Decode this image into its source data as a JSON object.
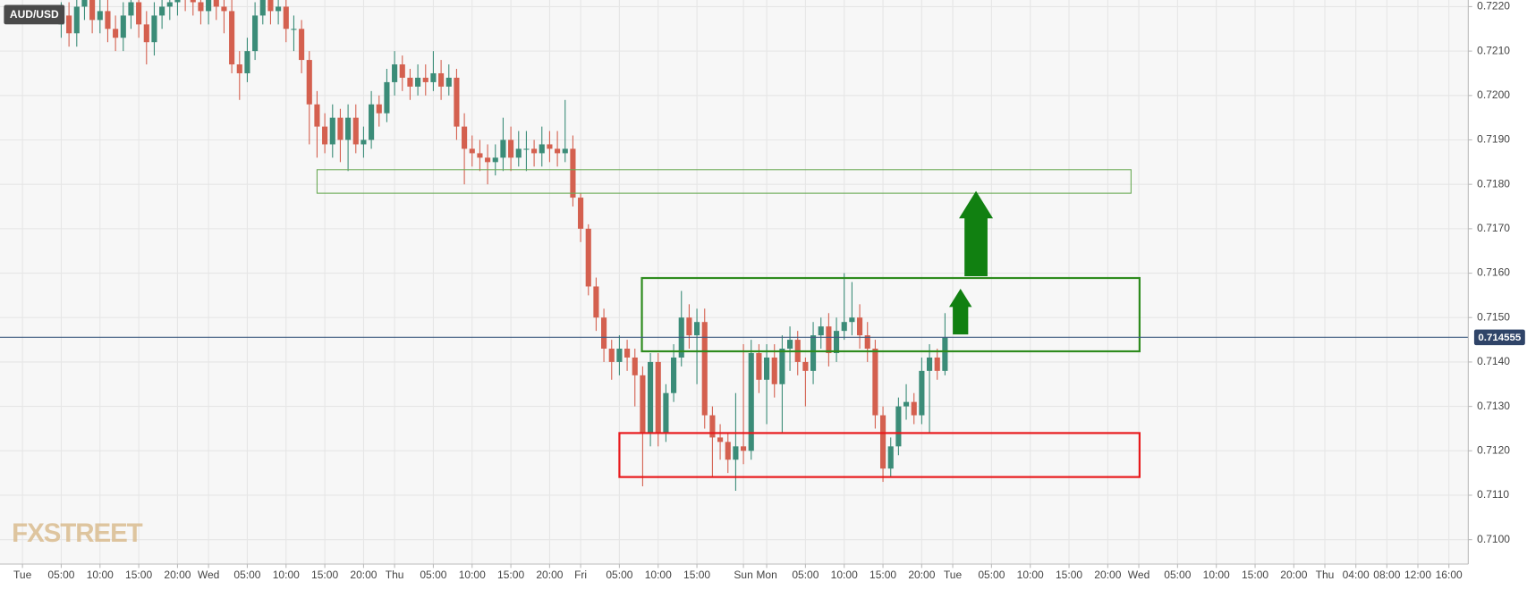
{
  "chart_data": {
    "type": "candlestick",
    "title": "AUD/USD",
    "watermark": "FXSTREET",
    "up_color": "#3b8c78",
    "down_color": "#d4604f",
    "grid": true,
    "xlim": [
      -2.9,
      186.5
    ],
    "ylim": [
      0.70945,
      0.72215
    ],
    "xticks": [
      {
        "value": 0,
        "label": "Tue"
      },
      {
        "value": 5,
        "label": "05:00"
      },
      {
        "value": 10,
        "label": "10:00"
      },
      {
        "value": 15,
        "label": "15:00"
      },
      {
        "value": 20,
        "label": "20:00"
      },
      {
        "value": 24,
        "label": "Wed"
      },
      {
        "value": 29,
        "label": "05:00"
      },
      {
        "value": 34,
        "label": "10:00"
      },
      {
        "value": 39,
        "label": "15:00"
      },
      {
        "value": 44,
        "label": "20:00"
      },
      {
        "value": 48,
        "label": "Thu"
      },
      {
        "value": 53,
        "label": "05:00"
      },
      {
        "value": 58,
        "label": "10:00"
      },
      {
        "value": 63,
        "label": "15:00"
      },
      {
        "value": 68,
        "label": "20:00"
      },
      {
        "value": 72,
        "label": "Fri"
      },
      {
        "value": 77,
        "label": "05:00"
      },
      {
        "value": 82,
        "label": "10:00"
      },
      {
        "value": 87,
        "label": "15:00"
      },
      {
        "value": 93,
        "label": "Sun"
      },
      {
        "value": 96,
        "label": "Mon"
      },
      {
        "value": 101,
        "label": "05:00"
      },
      {
        "value": 106,
        "label": "10:00"
      },
      {
        "value": 111,
        "label": "15:00"
      },
      {
        "value": 116,
        "label": "20:00"
      },
      {
        "value": 120,
        "label": "Tue"
      },
      {
        "value": 125,
        "label": "05:00"
      },
      {
        "value": 130,
        "label": "10:00"
      },
      {
        "value": 135,
        "label": "15:00"
      },
      {
        "value": 140,
        "label": "20:00"
      },
      {
        "value": 144,
        "label": "Wed"
      },
      {
        "value": 149,
        "label": "05:00"
      },
      {
        "value": 154,
        "label": "10:00"
      },
      {
        "value": 159,
        "label": "15:00"
      },
      {
        "value": 164,
        "label": "20:00"
      },
      {
        "value": 168,
        "label": "Thu"
      },
      {
        "value": 172,
        "label": "04:00"
      },
      {
        "value": 176,
        "label": "08:00"
      },
      {
        "value": 180,
        "label": "12:00"
      },
      {
        "value": 184,
        "label": "16:00"
      }
    ],
    "yticks": [
      {
        "value": 0.71,
        "label": "0.7100"
      },
      {
        "value": 0.711,
        "label": "0.7110"
      },
      {
        "value": 0.712,
        "label": "0.7120"
      },
      {
        "value": 0.713,
        "label": "0.7130"
      },
      {
        "value": 0.714,
        "label": "0.7140"
      },
      {
        "value": 0.715,
        "label": "0.7150"
      },
      {
        "value": 0.716,
        "label": "0.7160"
      },
      {
        "value": 0.717,
        "label": "0.7170"
      },
      {
        "value": 0.718,
        "label": "0.7180"
      },
      {
        "value": 0.719,
        "label": "0.7190"
      },
      {
        "value": 0.72,
        "label": "0.7200"
      },
      {
        "value": 0.721,
        "label": "0.7210"
      },
      {
        "value": 0.722,
        "label": "0.7220"
      }
    ],
    "last_price": 0.714555,
    "x": [
      5,
      6,
      7,
      8,
      9,
      10,
      11,
      12,
      13,
      14,
      15,
      16,
      17,
      18,
      19,
      20,
      21,
      22,
      23,
      24,
      25,
      26,
      27,
      28,
      29,
      30,
      31,
      32,
      33,
      34,
      35,
      36,
      37,
      38,
      39,
      40,
      41,
      42,
      43,
      44,
      45,
      46,
      47,
      48,
      49,
      50,
      51,
      52,
      53,
      54,
      55,
      56,
      57,
      58,
      59,
      60,
      61,
      62,
      63,
      64,
      65,
      66,
      67,
      68,
      69,
      70,
      71,
      72,
      73,
      74,
      75,
      76,
      77,
      78,
      79,
      80,
      81,
      82,
      83,
      84,
      85,
      86,
      87,
      88,
      89,
      90,
      91,
      92,
      93,
      94,
      95,
      96,
      97,
      98,
      99,
      100,
      101,
      102,
      103,
      104,
      105,
      106,
      107,
      108,
      109,
      110,
      111,
      112,
      113,
      114,
      115,
      116,
      117,
      118,
      119
    ],
    "open": [
      0.7216,
      0.7218,
      0.7214,
      0.722,
      0.7222,
      0.7217,
      0.7219,
      0.7215,
      0.7213,
      0.7218,
      0.7221,
      0.7216,
      0.7212,
      0.7218,
      0.722,
      0.7221,
      0.7223,
      0.7222,
      0.7221,
      0.7219,
      0.7222,
      0.722,
      0.7219,
      0.7207,
      0.7205,
      0.721,
      0.7218,
      0.7222,
      0.7219,
      0.722,
      0.7215,
      0.7215,
      0.7208,
      0.7198,
      0.7193,
      0.7189,
      0.7195,
      0.719,
      0.7195,
      0.7189,
      0.719,
      0.7198,
      0.7196,
      0.7203,
      0.7207,
      0.7204,
      0.7202,
      0.7204,
      0.7203,
      0.7205,
      0.7202,
      0.7204,
      0.7193,
      0.7188,
      0.7187,
      0.7186,
      0.7185,
      0.7186,
      0.719,
      0.7186,
      0.7188,
      0.7188,
      0.7187,
      0.7189,
      0.7188,
      0.7187,
      0.7188,
      0.7177,
      0.717,
      0.7157,
      0.715,
      0.7143,
      0.714,
      0.7143,
      0.7141,
      0.7137,
      0.7124,
      0.714,
      0.7124,
      0.7133,
      0.7141,
      0.715,
      0.7146,
      0.7149,
      0.7128,
      0.7123,
      0.7122,
      0.7118,
      0.7121,
      0.712,
      0.7142,
      0.7136,
      0.7141,
      0.7135,
      0.7143,
      0.7145,
      0.714,
      0.7138,
      0.7146,
      0.7148,
      0.7142,
      0.7147,
      0.7149,
      0.715,
      0.7146,
      0.7143,
      0.7128,
      0.7116,
      0.7121,
      0.713,
      0.7131,
      0.7128,
      0.7138,
      0.7141,
      0.7138
    ],
    "high": [
      0.7221,
      0.7221,
      0.7223,
      0.7225,
      0.7225,
      0.7222,
      0.7222,
      0.7218,
      0.7221,
      0.7224,
      0.7224,
      0.7219,
      0.7221,
      0.7223,
      0.7224,
      0.7226,
      0.7226,
      0.7225,
      0.7224,
      0.7225,
      0.7225,
      0.7223,
      0.7222,
      0.721,
      0.7213,
      0.7221,
      0.7225,
      0.7225,
      0.7223,
      0.7223,
      0.7218,
      0.7217,
      0.721,
      0.7201,
      0.7196,
      0.7198,
      0.7197,
      0.7198,
      0.7198,
      0.7193,
      0.7201,
      0.72,
      0.7206,
      0.721,
      0.7209,
      0.7206,
      0.7207,
      0.7207,
      0.721,
      0.7208,
      0.7207,
      0.7206,
      0.7196,
      0.7191,
      0.719,
      0.7189,
      0.7189,
      0.7195,
      0.7193,
      0.7192,
      0.7192,
      0.719,
      0.7193,
      0.7192,
      0.7192,
      0.7199,
      0.7191,
      0.7178,
      0.7171,
      0.7159,
      0.7152,
      0.7145,
      0.7146,
      0.7145,
      0.7143,
      0.7139,
      0.7142,
      0.7142,
      0.7135,
      0.7144,
      0.7156,
      0.7153,
      0.7152,
      0.7152,
      0.713,
      0.7126,
      0.7124,
      0.7133,
      0.7144,
      0.7145,
      0.7144,
      0.7144,
      0.7144,
      0.7146,
      0.7148,
      0.7147,
      0.7141,
      0.7149,
      0.715,
      0.7151,
      0.715,
      0.716,
      0.7158,
      0.7153,
      0.7149,
      0.7145,
      0.713,
      0.7123,
      0.7132,
      0.7135,
      0.7133,
      0.7141,
      0.7144,
      0.7143,
      0.7151
    ],
    "low": [
      0.7213,
      0.7211,
      0.7211,
      0.7217,
      0.7214,
      0.7214,
      0.7212,
      0.721,
      0.721,
      0.7215,
      0.7213,
      0.7207,
      0.7209,
      0.7215,
      0.7217,
      0.7218,
      0.7219,
      0.7218,
      0.7216,
      0.7216,
      0.7217,
      0.7214,
      0.7205,
      0.7199,
      0.7203,
      0.7208,
      0.7216,
      0.7216,
      0.7216,
      0.7212,
      0.721,
      0.7205,
      0.7189,
      0.7186,
      0.7187,
      0.7186,
      0.7185,
      0.7183,
      0.7187,
      0.7186,
      0.7188,
      0.7193,
      0.7194,
      0.72,
      0.7201,
      0.7199,
      0.72,
      0.72,
      0.7201,
      0.7199,
      0.72,
      0.719,
      0.718,
      0.7184,
      0.7183,
      0.718,
      0.7182,
      0.7183,
      0.7183,
      0.7184,
      0.7183,
      0.7184,
      0.7184,
      0.7185,
      0.7184,
      0.7185,
      0.7175,
      0.7167,
      0.7155,
      0.7147,
      0.714,
      0.7136,
      0.7137,
      0.7138,
      0.713,
      0.7112,
      0.7121,
      0.7121,
      0.7122,
      0.7131,
      0.7139,
      0.7143,
      0.7135,
      0.7125,
      0.7114,
      0.7118,
      0.7115,
      0.7111,
      0.7117,
      0.7118,
      0.7133,
      0.7126,
      0.7132,
      0.7124,
      0.7138,
      0.7137,
      0.713,
      0.7135,
      0.7143,
      0.7139,
      0.714,
      0.7145,
      0.7146,
      0.7143,
      0.714,
      0.7125,
      0.7113,
      0.7114,
      0.7119,
      0.7127,
      0.7126,
      0.7126,
      0.7124,
      0.7136,
      0.7137
    ],
    "close": [
      0.7218,
      0.7214,
      0.722,
      0.7222,
      0.7217,
      0.7219,
      0.7215,
      0.7213,
      0.7218,
      0.7221,
      0.7216,
      0.7212,
      0.7218,
      0.722,
      0.7221,
      0.7223,
      0.7222,
      0.7221,
      0.7219,
      0.7222,
      0.722,
      0.7219,
      0.7207,
      0.7205,
      0.721,
      0.7218,
      0.7222,
      0.7219,
      0.722,
      0.7215,
      0.7215,
      0.7208,
      0.7198,
      0.7193,
      0.7189,
      0.7195,
      0.719,
      0.7195,
      0.7189,
      0.719,
      0.7198,
      0.7196,
      0.7203,
      0.7207,
      0.7204,
      0.7202,
      0.7204,
      0.7203,
      0.7205,
      0.7202,
      0.7204,
      0.7193,
      0.7188,
      0.7187,
      0.7186,
      0.7185,
      0.7186,
      0.719,
      0.7186,
      0.7188,
      0.7188,
      0.7187,
      0.7189,
      0.7188,
      0.7187,
      0.7188,
      0.7177,
      0.717,
      0.7157,
      0.715,
      0.7143,
      0.714,
      0.7143,
      0.7141,
      0.7137,
      0.7124,
      0.714,
      0.7124,
      0.7133,
      0.7141,
      0.715,
      0.7146,
      0.7149,
      0.7128,
      0.7123,
      0.7122,
      0.7118,
      0.7121,
      0.712,
      0.7142,
      0.7136,
      0.7141,
      0.7135,
      0.7143,
      0.7145,
      0.714,
      0.7138,
      0.7146,
      0.7148,
      0.7142,
      0.7147,
      0.7149,
      0.715,
      0.7146,
      0.7143,
      0.7128,
      0.7116,
      0.7121,
      0.713,
      0.7131,
      0.7128,
      0.7138,
      0.7141,
      0.7138,
      0.71455
    ],
    "zones": [
      {
        "x": [
          38,
          143
        ],
        "y": [
          0.7178,
          0.71833
        ],
        "color": "#6aaa55",
        "width": 1
      },
      {
        "x": [
          79.9,
          144.1
        ],
        "y": [
          0.71424,
          0.71589
        ],
        "color": "#2e8b1e",
        "width": 2
      },
      {
        "x": [
          77,
          144.1
        ],
        "y": [
          0.71141,
          0.7124
        ],
        "color": "#e8191c",
        "width": 2
      }
    ],
    "arrows": [
      {
        "x": 123,
        "y": [
          0.71593,
          0.71785
        ],
        "color": "#118011"
      },
      {
        "x": 121,
        "y": [
          0.71462,
          0.71565
        ],
        "color": "#118011"
      }
    ]
  }
}
